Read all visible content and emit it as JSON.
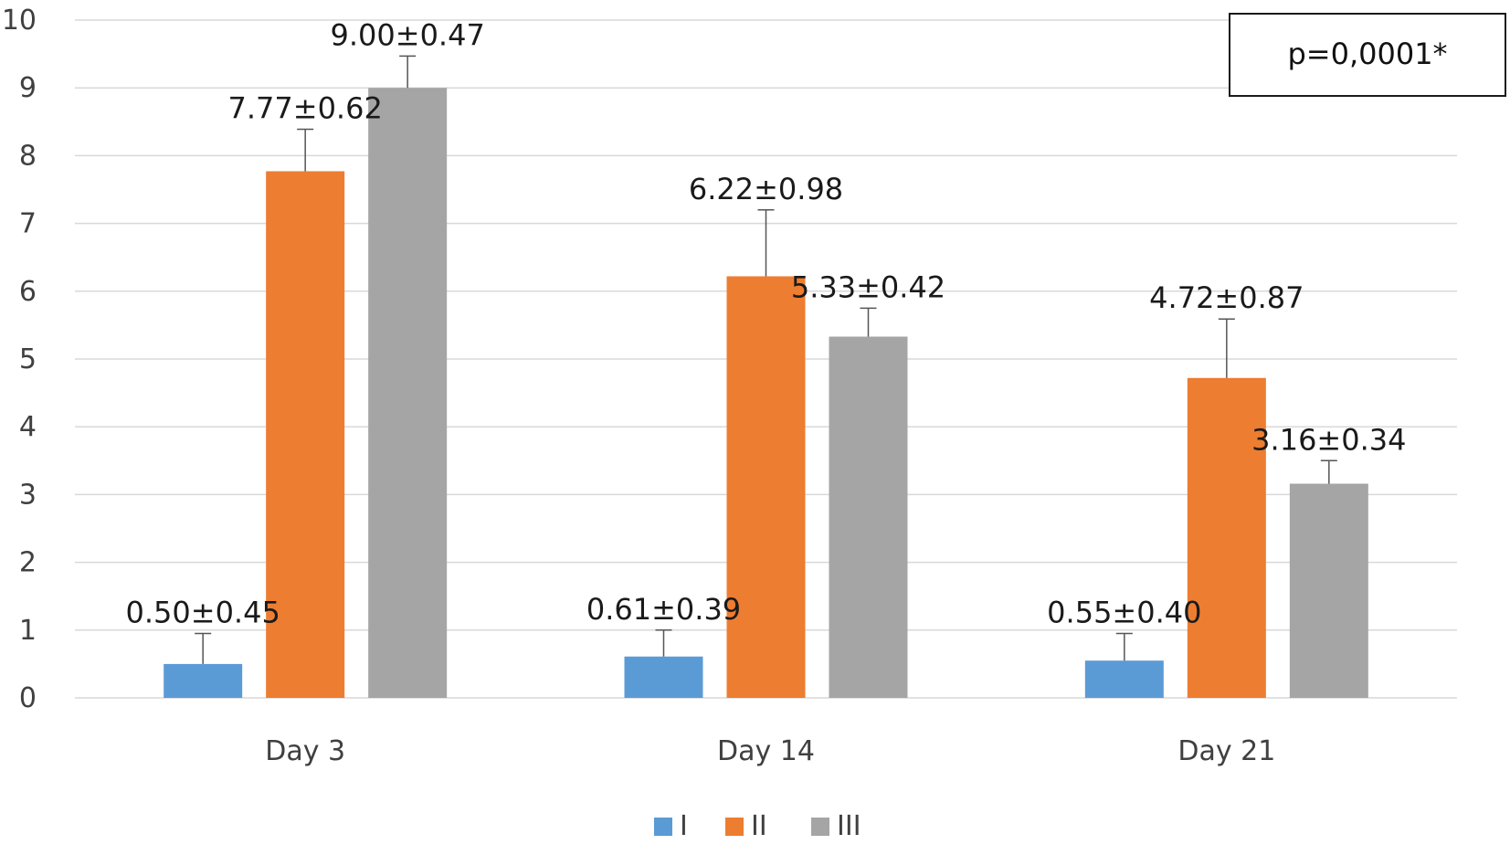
{
  "chart_data": {
    "type": "bar",
    "title": "",
    "xlabel": "",
    "ylabel": "",
    "categories": [
      "Day 3",
      "Day 14",
      "Day 21"
    ],
    "ylim": [
      0,
      10
    ],
    "yticks": [
      0,
      1,
      2,
      3,
      4,
      5,
      6,
      7,
      8,
      9,
      10
    ],
    "grid": true,
    "legend_position": "bottom",
    "series": [
      {
        "name": "I",
        "color": "#5b9bd5",
        "values": [
          0.5,
          0.61,
          0.55
        ],
        "errors": [
          0.45,
          0.39,
          0.4
        ],
        "labels": [
          "0.50±0.45",
          "0.61±0.39",
          "0.55±0.40"
        ]
      },
      {
        "name": "II",
        "color": "#ed7d31",
        "values": [
          7.77,
          6.22,
          4.72
        ],
        "errors": [
          0.62,
          0.98,
          0.87
        ],
        "labels": [
          "7.77±0.62",
          "6.22±0.98",
          "4.72±0.87"
        ]
      },
      {
        "name": "III",
        "color": "#a5a5a5",
        "values": [
          9.0,
          5.33,
          3.16
        ],
        "errors": [
          0.47,
          0.42,
          0.34
        ],
        "labels": [
          "9.00±0.47",
          "5.33±0.42",
          "3.16±0.34"
        ]
      }
    ],
    "annotation": "p=0,0001*"
  }
}
